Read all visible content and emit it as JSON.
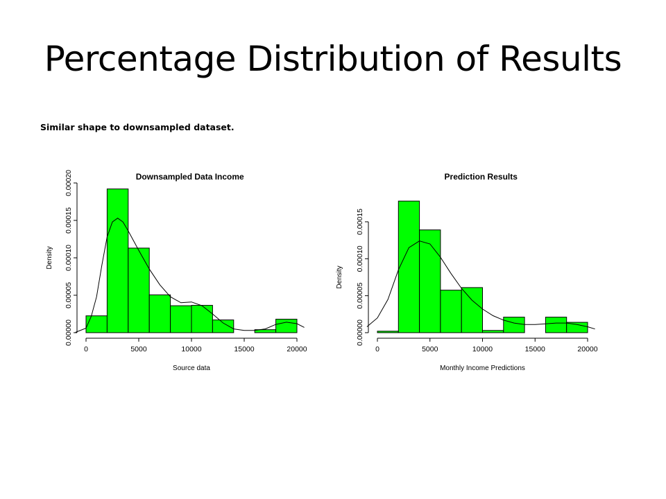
{
  "slide": {
    "title": "Percentage Distribution of Results",
    "subtitle": "Similar shape to downsampled dataset."
  },
  "colors": {
    "bar_fill": "#00ff00",
    "bar_stroke": "#000000",
    "curve": "#000000"
  },
  "chart_data": [
    {
      "type": "bar",
      "title": "Downsampled Data Income",
      "xlabel": "Source data",
      "ylabel": "Density",
      "bin_edges": [
        0,
        2000,
        4000,
        6000,
        8000,
        10000,
        12000,
        14000,
        16000,
        18000,
        20000
      ],
      "values": [
        2.25e-05,
        0.000192,
        0.000113,
        5.05e-05,
        3.6e-05,
        3.65e-05,
        1.7e-05,
        0,
        4e-06,
        1.8e-05
      ],
      "density_curve": {
        "x": [
          -1000,
          0,
          500,
          1000,
          1500,
          2000,
          2500,
          3000,
          3500,
          4000,
          5000,
          6000,
          7000,
          8000,
          9000,
          10000,
          11000,
          12000,
          13000,
          14000,
          15000,
          16000,
          17000,
          18000,
          19000,
          20000,
          20700
        ],
        "y": [
          5e-07,
          6e-06,
          2.2e-05,
          4.8e-05,
          9e-05,
          0.000128,
          0.000148,
          0.000153,
          0.000148,
          0.000136,
          0.00011,
          8.5e-05,
          6.4e-05,
          4.8e-05,
          4e-05,
          4.1e-05,
          3.6e-05,
          2.5e-05,
          1.3e-05,
          5e-06,
          3e-06,
          3e-06,
          5e-06,
          1.1e-05,
          1.4e-05,
          1.2e-05,
          7e-06
        ]
      },
      "xticks": [
        0,
        5000,
        10000,
        15000,
        20000
      ],
      "yticks": [
        0,
        5e-05,
        0.0001,
        0.00015,
        0.0002
      ],
      "ytick_labels": [
        "0.00000",
        "0.00005",
        "0.00010",
        "0.00015",
        "0.00020"
      ],
      "xlim": [
        -1000,
        20700
      ],
      "ylim": [
        0,
        0.0002
      ]
    },
    {
      "type": "bar",
      "title": "Prediction Results",
      "xlabel": "Monthly Income Predictions",
      "ylabel": "Density",
      "bin_edges": [
        0,
        2000,
        4000,
        6000,
        8000,
        10000,
        12000,
        14000,
        16000,
        18000,
        20000
      ],
      "values": [
        2e-06,
        0.000178,
        0.000139,
        5.75e-05,
        6.1e-05,
        3e-06,
        2.1e-05,
        0,
        2.1e-05,
        1.4e-05
      ],
      "density_curve": {
        "x": [
          -1000,
          0,
          1000,
          2000,
          3000,
          4000,
          5000,
          6000,
          7000,
          8000,
          9000,
          10000,
          11000,
          12000,
          13000,
          14000,
          15000,
          16000,
          17000,
          18000,
          19000,
          20000,
          20700
        ],
        "y": [
          8e-06,
          2e-05,
          4.5e-05,
          8.5e-05,
          0.000115,
          0.000124,
          0.00012,
          0.000102,
          8e-05,
          6e-05,
          4.4e-05,
          3.2e-05,
          2.3e-05,
          1.7e-05,
          1.3e-05,
          1.1e-05,
          1.1e-05,
          1.2e-05,
          1.3e-05,
          1.3e-05,
          1.1e-05,
          8e-06,
          5e-06
        ]
      },
      "xticks": [
        0,
        5000,
        10000,
        15000,
        20000
      ],
      "yticks": [
        0,
        5e-05,
        0.0001,
        0.00015
      ],
      "ytick_labels": [
        "0.00000",
        "0.00005",
        "0.00010",
        "0.00015"
      ],
      "xlim": [
        -1000,
        20700
      ],
      "ylim": [
        0,
        0.00018
      ]
    }
  ]
}
